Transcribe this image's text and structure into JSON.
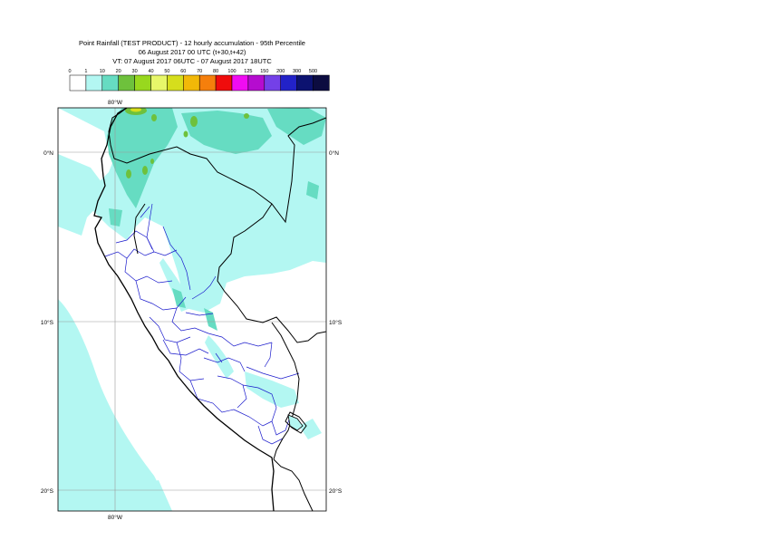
{
  "title": {
    "line1": "Point Rainfall (TEST PRODUCT) - 12 hourly accumulation - 95th Percentile",
    "line2": "06 August 2017 00 UTC (t+30,t+42)",
    "line3": "VT: 07 August 2017 06UTC - 07 August 2017 18UTC"
  },
  "legend": {
    "labels": [
      "0",
      "1",
      "10",
      "20",
      "30",
      "40",
      "50",
      "60",
      "70",
      "80",
      "100",
      "125",
      "150",
      "200",
      "300",
      "500"
    ],
    "colors": [
      "#ffffff",
      "#b3f7f2",
      "#66dcc2",
      "#6ec13c",
      "#98d81e",
      "#e7f76a",
      "#d6de1c",
      "#f2b808",
      "#f57f0c",
      "#f00c0c",
      "#f00cf2",
      "#b50ccf",
      "#7440e8",
      "#2222c8",
      "#0c1270",
      "#0c0c40"
    ]
  },
  "axes": {
    "lon_label_top": "80°W",
    "lon_label_bottom": "80°W",
    "lat_labels": [
      "0°N",
      "10°S",
      "20°S"
    ]
  },
  "colors": {
    "rain_light": "#b3f7f2",
    "rain_medium": "#66dcc2",
    "rain_green": "#6ec13c",
    "coastline": "#000000",
    "admin_boundary": "#1a1acc",
    "gridline": "#9a9a9a"
  }
}
